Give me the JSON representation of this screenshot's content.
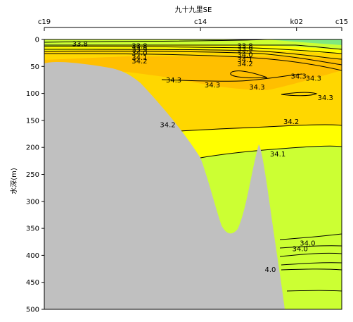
{
  "chart_data": {
    "type": "contour",
    "title": "九十九里SE",
    "ylabel": "水深(m)",
    "ylim": [
      0,
      500
    ],
    "y_inverted": true,
    "yticks": [
      0,
      50,
      100,
      150,
      200,
      250,
      300,
      350,
      400,
      450,
      500
    ],
    "stations": [
      {
        "label": "c19",
        "pos": 0.0
      },
      {
        "label": "c14",
        "pos": 0.525
      },
      {
        "label": "k02",
        "pos": 0.848
      },
      {
        "label": "c15",
        "pos": 1.0
      }
    ],
    "fill_bands": [
      {
        "range": "<34.0",
        "color": "#7fe87f"
      },
      {
        "range": "34.0-34.1",
        "color": "#ccff33"
      },
      {
        "range": "34.1-34.2",
        "color": "#ffff00"
      },
      {
        "range": "34.2-34.3",
        "color": "#ffd700"
      },
      {
        "range": "34.3-34.4",
        "color": "#ffbf00"
      },
      {
        "range": "seafloor",
        "color": "#c0c0c0"
      }
    ],
    "contour_labels": [
      {
        "text": "33.8",
        "x": 0.12,
        "depth": 8
      },
      {
        "text": "33.8",
        "x": 0.32,
        "depth": 12
      },
      {
        "text": "33.9",
        "x": 0.32,
        "depth": 18
      },
      {
        "text": "34.0",
        "x": 0.32,
        "depth": 25
      },
      {
        "text": "34.1",
        "x": 0.32,
        "depth": 33
      },
      {
        "text": "34.2",
        "x": 0.32,
        "depth": 40
      },
      {
        "text": "33.8",
        "x": 0.675,
        "depth": 12
      },
      {
        "text": "33.9",
        "x": 0.675,
        "depth": 18
      },
      {
        "text": "34.0",
        "x": 0.675,
        "depth": 28
      },
      {
        "text": "34.1",
        "x": 0.675,
        "depth": 37
      },
      {
        "text": "34.2",
        "x": 0.675,
        "depth": 45
      },
      {
        "text": "34.3",
        "x": 0.435,
        "depth": 75
      },
      {
        "text": "34.3",
        "x": 0.565,
        "depth": 84
      },
      {
        "text": "34.3",
        "x": 0.715,
        "depth": 88
      },
      {
        "text": "34.3",
        "x": 0.855,
        "depth": 68
      },
      {
        "text": "34.3",
        "x": 0.905,
        "depth": 72
      },
      {
        "text": "34.3",
        "x": 0.945,
        "depth": 108
      },
      {
        "text": "34.2",
        "x": 0.415,
        "depth": 158
      },
      {
        "text": "34.2",
        "x": 0.83,
        "depth": 152
      },
      {
        "text": "34.1",
        "x": 0.785,
        "depth": 212
      },
      {
        "text": "34.0",
        "x": 0.885,
        "depth": 377
      },
      {
        "text": "34.0",
        "x": 0.86,
        "depth": 388
      },
      {
        "text": "4.0",
        "x": 0.76,
        "depth": 426
      }
    ]
  }
}
